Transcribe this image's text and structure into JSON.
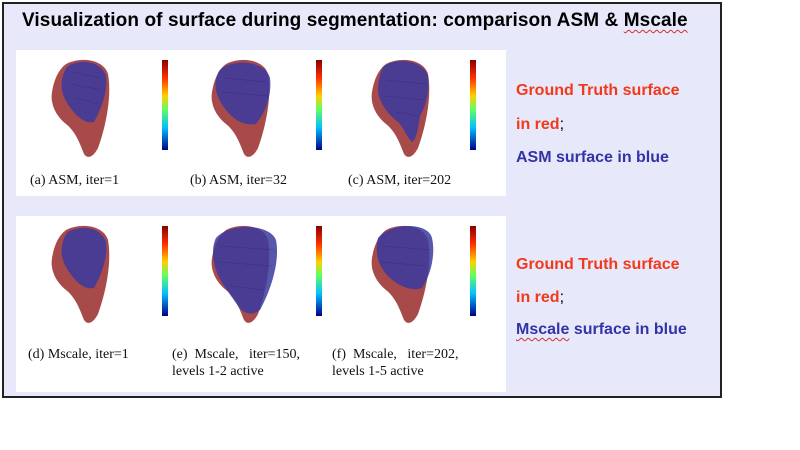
{
  "slide": {
    "title_main": "Visualization of surface during segmentation: comparison ASM & ",
    "title_end": "Mscale"
  },
  "top_panel": {
    "captions": [
      "(a) ASM, iter=1",
      "(b) ASM, iter=32",
      "(c) ASM, iter=202"
    ]
  },
  "bottom_panel": {
    "captions": [
      {
        "line1": "(d) Mscale, iter=1",
        "line2": ""
      },
      {
        "line1": "(e)  Mscale,   iter=150,",
        "line2": "levels 1-2 active"
      },
      {
        "line1": "(f)  Mscale,   iter=202,",
        "line2": "levels 1-5 active"
      }
    ]
  },
  "legend_top": {
    "line1": "Ground Truth surface",
    "line2_red": "in red",
    "line2_sep": ";",
    "line3": "ASM surface in blue"
  },
  "legend_bottom": {
    "line1": "Ground Truth surface",
    "line2_red": "in red",
    "line2_sep": ";",
    "line3_word": "Mscale",
    "line3_rest": " surface in blue"
  },
  "colors": {
    "ground_truth": "#a84a4a",
    "segmentation": "#3a3aa0",
    "legend_red": "#f03a1a",
    "legend_blue": "#3333a8",
    "slide_bg": "#e8e8fb"
  }
}
